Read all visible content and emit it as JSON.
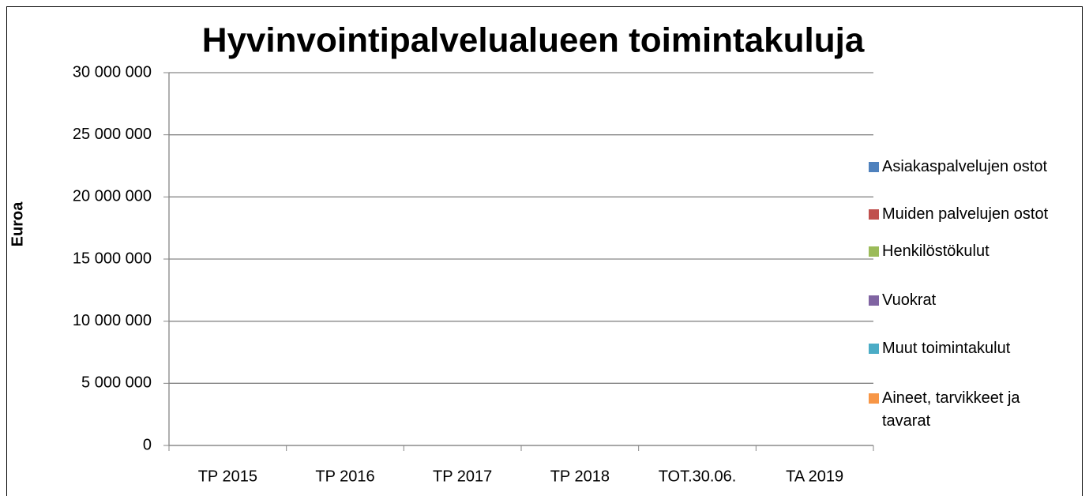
{
  "chart_data": {
    "type": "stacked-bar",
    "title": "Hyvinvointipalvelualueen toimintakuluja",
    "y_label": "Euroa",
    "categories": [
      "TP 2015",
      "TP 2016",
      "TP 2017",
      "TP 2018",
      "TOT.30.06.",
      "TA  2019"
    ],
    "series": [
      {
        "name": "Asiakaspalvelujen ostot",
        "color": "#4f81bd",
        "values": [
          0,
          0,
          0,
          0,
          0,
          0
        ]
      },
      {
        "name": "Muiden palvelujen ostot",
        "color": "#c0504d",
        "values": [
          0,
          0,
          0,
          0,
          0,
          0
        ]
      },
      {
        "name": "Henkilöstökulut",
        "color": "#9bbb59",
        "values": [
          0,
          0,
          0,
          0,
          0,
          0
        ]
      },
      {
        "name": "Vuokrat",
        "color": "#8064a2",
        "values": [
          0,
          0,
          0,
          0,
          0,
          0
        ]
      },
      {
        "name": "Muut toimintakulut",
        "color": "#4bacc6",
        "values": [
          0,
          0,
          0,
          0,
          0,
          0
        ]
      },
      {
        "name": "Aineet, tarvikkeet ja tavarat",
        "color": "#f79646",
        "values": [
          0,
          0,
          0,
          0,
          0,
          0
        ]
      }
    ],
    "ylim": [
      0,
      30000000
    ],
    "yticks": [
      0,
      {
        "value": 5000000,
        "label": "5 000 000"
      },
      {
        "value": 10000000,
        "label": "10 000 000"
      },
      {
        "value": 15000000,
        "label": "15 000 000"
      },
      {
        "value": 20000000,
        "label": "20 000 000"
      },
      {
        "value": 25000000,
        "label": "25 000 000"
      },
      {
        "value": 30000000,
        "label": "30 000 000"
      }
    ],
    "grid": true,
    "legend": "right"
  }
}
